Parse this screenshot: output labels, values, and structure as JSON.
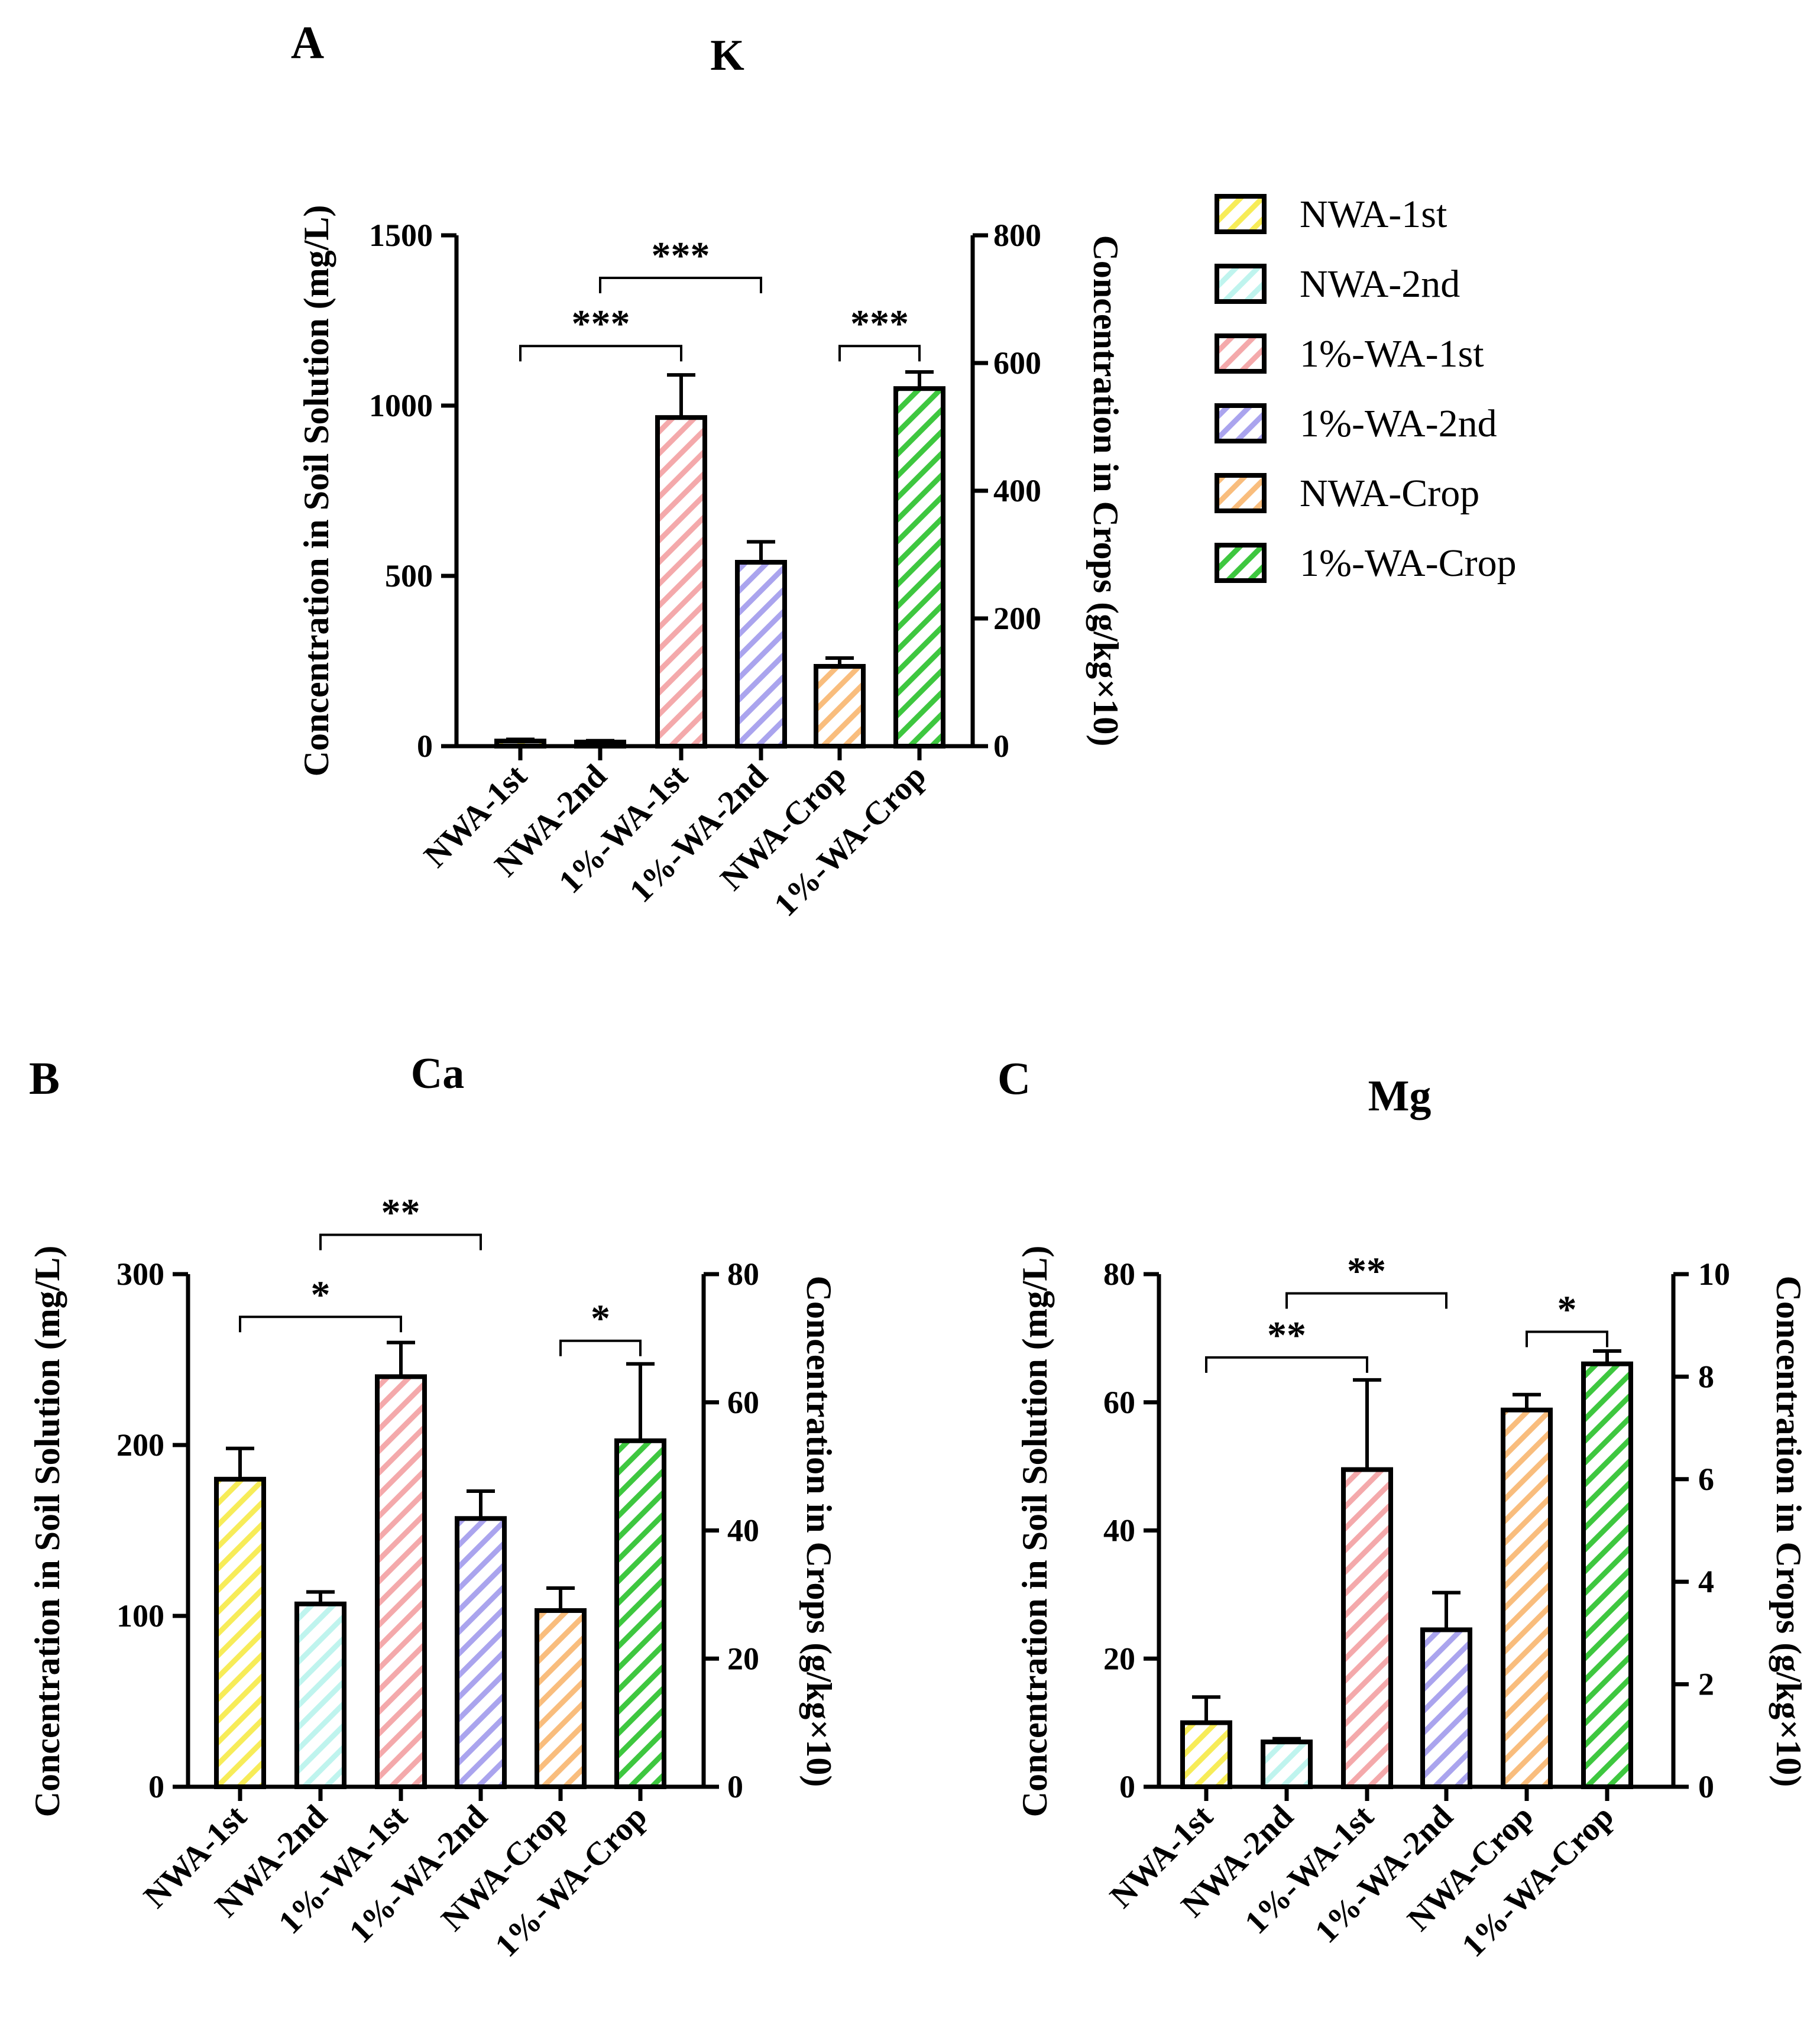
{
  "figure": {
    "x_categories": [
      "NWA-1st",
      "NWA-2nd",
      "1%-WA-1st",
      "1%-WA-2nd",
      "NWA-Crop",
      "1%-WA-Crop"
    ],
    "colors": {
      "NWA-1st": "#f7ec58",
      "NWA-2nd": "#bff4ee",
      "1%-WA-1st": "#f4a9ab",
      "1%-WA-2nd": "#aaa4ee",
      "NWA-Crop": "#f9bd7d",
      "1%-WA-Crop": "#3ec73f"
    },
    "legend": {
      "items": [
        "NWA-1st",
        "NWA-2nd",
        "1%-WA-1st",
        "1%-WA-2nd",
        "NWA-Crop",
        "1%-WA-Crop"
      ]
    }
  },
  "chart_data": [
    {
      "panel": "A",
      "type": "bar",
      "title": "K",
      "categories": [
        "NWA-1st",
        "NWA-2nd",
        "1%-WA-1st",
        "1%-WA-2nd",
        "NWA-Crop",
        "1%-WA-Crop"
      ],
      "left_axis": {
        "label": "Concentration in Soil Solution (mg/L)",
        "ylim": [
          0,
          1500
        ],
        "ticks": [
          0,
          500,
          1000,
          1500
        ]
      },
      "right_axis": {
        "label": "Concentration in Crops (g/kg×10)",
        "ylim": [
          0,
          800
        ],
        "ticks": [
          0,
          200,
          400,
          600,
          800
        ]
      },
      "values": [
        15,
        12,
        965,
        540,
        125,
        560
      ],
      "errors": [
        5,
        4,
        125,
        60,
        13,
        26
      ],
      "axis_for_bar": [
        "left",
        "left",
        "left",
        "left",
        "right",
        "right"
      ],
      "significance": [
        {
          "from": 0,
          "to": 2,
          "label": "***",
          "y": 1175,
          "axis": "left"
        },
        {
          "from": 1,
          "to": 3,
          "label": "***",
          "y": 1375,
          "axis": "left"
        },
        {
          "from": 4,
          "to": 5,
          "label": "***",
          "y": 1175,
          "axis": "left"
        }
      ]
    },
    {
      "panel": "B",
      "type": "bar",
      "title": "Ca",
      "categories": [
        "NWA-1st",
        "NWA-2nd",
        "1%-WA-1st",
        "1%-WA-2nd",
        "NWA-Crop",
        "1%-WA-Crop"
      ],
      "left_axis": {
        "label": "Concentration in Soil Solution (mg/L)",
        "ylim": [
          0,
          300
        ],
        "ticks": [
          0,
          100,
          200,
          300
        ]
      },
      "right_axis": {
        "label": "Concentration in Crops (g/kg×10)",
        "ylim": [
          0,
          80
        ],
        "ticks": [
          0,
          20,
          40,
          60,
          80
        ]
      },
      "values": [
        180,
        107,
        240,
        157,
        27.5,
        54
      ],
      "errors": [
        18,
        7,
        20,
        16,
        3.5,
        12
      ],
      "axis_for_bar": [
        "left",
        "left",
        "left",
        "left",
        "right",
        "right"
      ],
      "significance": [
        {
          "from": 0,
          "to": 2,
          "label": "*",
          "y": 275,
          "axis": "left"
        },
        {
          "from": 1,
          "to": 3,
          "label": "**",
          "y": 323,
          "axis": "left"
        },
        {
          "from": 4,
          "to": 5,
          "label": "*",
          "y": 261,
          "axis": "left"
        }
      ]
    },
    {
      "panel": "C",
      "type": "bar",
      "title": "Mg",
      "categories": [
        "NWA-1st",
        "NWA-2nd",
        "1%-WA-1st",
        "1%-WA-2nd",
        "NWA-Crop",
        "1%-WA-Crop"
      ],
      "left_axis": {
        "label": "Concentration in Soil Solution (mg/L)",
        "ylim": [
          0,
          80
        ],
        "ticks": [
          0,
          20,
          40,
          60,
          80
        ]
      },
      "right_axis": {
        "label": "Concentration in Crops (g/kg×10)",
        "ylim": [
          0,
          10
        ],
        "ticks": [
          0,
          2,
          4,
          6,
          8,
          10
        ]
      },
      "values": [
        10,
        7,
        49.5,
        24.5,
        7.35,
        8.25
      ],
      "errors": [
        4,
        0.5,
        14,
        5.8,
        0.3,
        0.25
      ],
      "axis_for_bar": [
        "left",
        "left",
        "left",
        "left",
        "right",
        "right"
      ],
      "significance": [
        {
          "from": 0,
          "to": 2,
          "label": "**",
          "y": 67,
          "axis": "left"
        },
        {
          "from": 1,
          "to": 3,
          "label": "**",
          "y": 77,
          "axis": "left"
        },
        {
          "from": 4,
          "to": 5,
          "label": "*",
          "y": 71,
          "axis": "left"
        }
      ]
    }
  ],
  "panel_letters": [
    "A",
    "B",
    "C"
  ]
}
